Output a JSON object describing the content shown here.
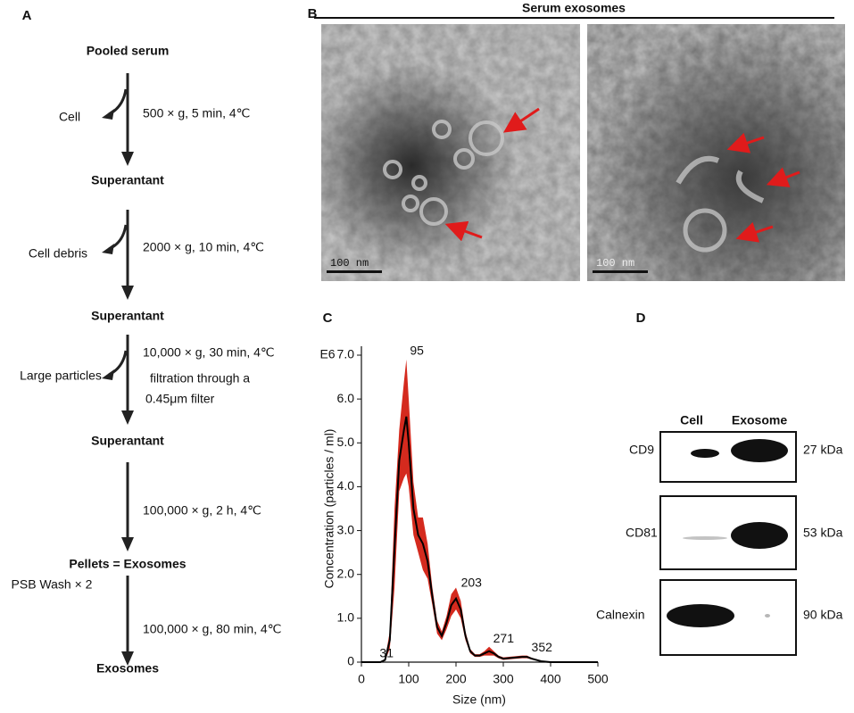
{
  "panel_labels": [
    "A",
    "B",
    "C",
    "D"
  ],
  "flowchart": {
    "start": "Pooled serum",
    "steps": [
      {
        "removed": "Cell",
        "conditions": [
          "500 × g, 5 min, 4℃"
        ],
        "product": "Superantant"
      },
      {
        "removed": "Cell debris",
        "conditions": [
          "2000 × g, 10 min, 4℃"
        ],
        "product": "Superantant"
      },
      {
        "removed": "Large particles",
        "conditions": [
          "10,000 × g, 30 min, 4℃",
          "filtration through a",
          "0.45μm filter"
        ],
        "product": "Superantant"
      },
      {
        "conditions": [
          "100,000 × g, 2 h, 4℃"
        ],
        "product": "Pellets = Exosomes"
      },
      {
        "removed": "PSB Wash × 2",
        "conditions": [
          "100,000 × g, 80 min, 4℃"
        ],
        "product": "Exosomes"
      }
    ]
  },
  "microscopy": {
    "title": "Serum exosomes",
    "scale_bars": [
      "100 nm",
      "100 nm"
    ]
  },
  "chart_data": {
    "type": "line",
    "unit_label": "E6",
    "x_label": "Size (nm)",
    "y_label": "Concentration (particles / ml)",
    "x": [
      0,
      20,
      40,
      50,
      60,
      70,
      80,
      90,
      95,
      100,
      110,
      120,
      130,
      140,
      150,
      160,
      170,
      180,
      190,
      200,
      210,
      220,
      230,
      240,
      250,
      260,
      270,
      280,
      290,
      300,
      320,
      340,
      350,
      360,
      380,
      400,
      450,
      500
    ],
    "series": [
      {
        "color": "#000000",
        "error_color": "#d42a1e",
        "values": [
          0,
          0,
          0,
          0.05,
          0.5,
          2.6,
          4.6,
          5.3,
          5.6,
          5.0,
          3.5,
          2.9,
          2.7,
          2.3,
          1.5,
          0.8,
          0.6,
          0.9,
          1.3,
          1.45,
          1.2,
          0.6,
          0.25,
          0.15,
          0.15,
          0.2,
          0.25,
          0.2,
          0.12,
          0.08,
          0.1,
          0.12,
          0.12,
          0.08,
          0.02,
          0,
          0,
          0
        ],
        "errors": [
          0,
          0,
          0,
          0.02,
          0.2,
          0.9,
          0.7,
          1.1,
          1.3,
          1.0,
          0.6,
          0.4,
          0.6,
          0.4,
          0.2,
          0.15,
          0.1,
          0.15,
          0.25,
          0.25,
          0.2,
          0.1,
          0.05,
          0.03,
          0.03,
          0.05,
          0.1,
          0.05,
          0.03,
          0.03,
          0.03,
          0.03,
          0.03,
          0.02,
          0.01,
          0,
          0,
          0
        ]
      }
    ],
    "peak_labels": [
      31,
      95,
      203,
      271,
      352
    ],
    "xlim": [
      0,
      500
    ],
    "xticks": [
      0,
      100,
      200,
      300,
      400,
      500
    ],
    "ylim": [
      0,
      7
    ],
    "yticks": [
      0,
      {
        "value": 1,
        "label": "1.0"
      },
      {
        "value": 2,
        "label": "2.0"
      },
      {
        "value": 3,
        "label": "3.0"
      },
      {
        "value": 4,
        "label": "4.0"
      },
      {
        "value": 5,
        "label": "5.0"
      },
      {
        "value": 6,
        "label": "6.0"
      },
      {
        "value": 7,
        "label": "7.0"
      }
    ]
  },
  "western_blot": {
    "columns": [
      "Cell",
      "Exosome"
    ],
    "rows": [
      {
        "protein": "CD9",
        "size": "27 kDa"
      },
      {
        "protein": "CD81",
        "size": "53 kDa"
      },
      {
        "protein": "Calnexin",
        "size": "90 kDa"
      }
    ]
  }
}
